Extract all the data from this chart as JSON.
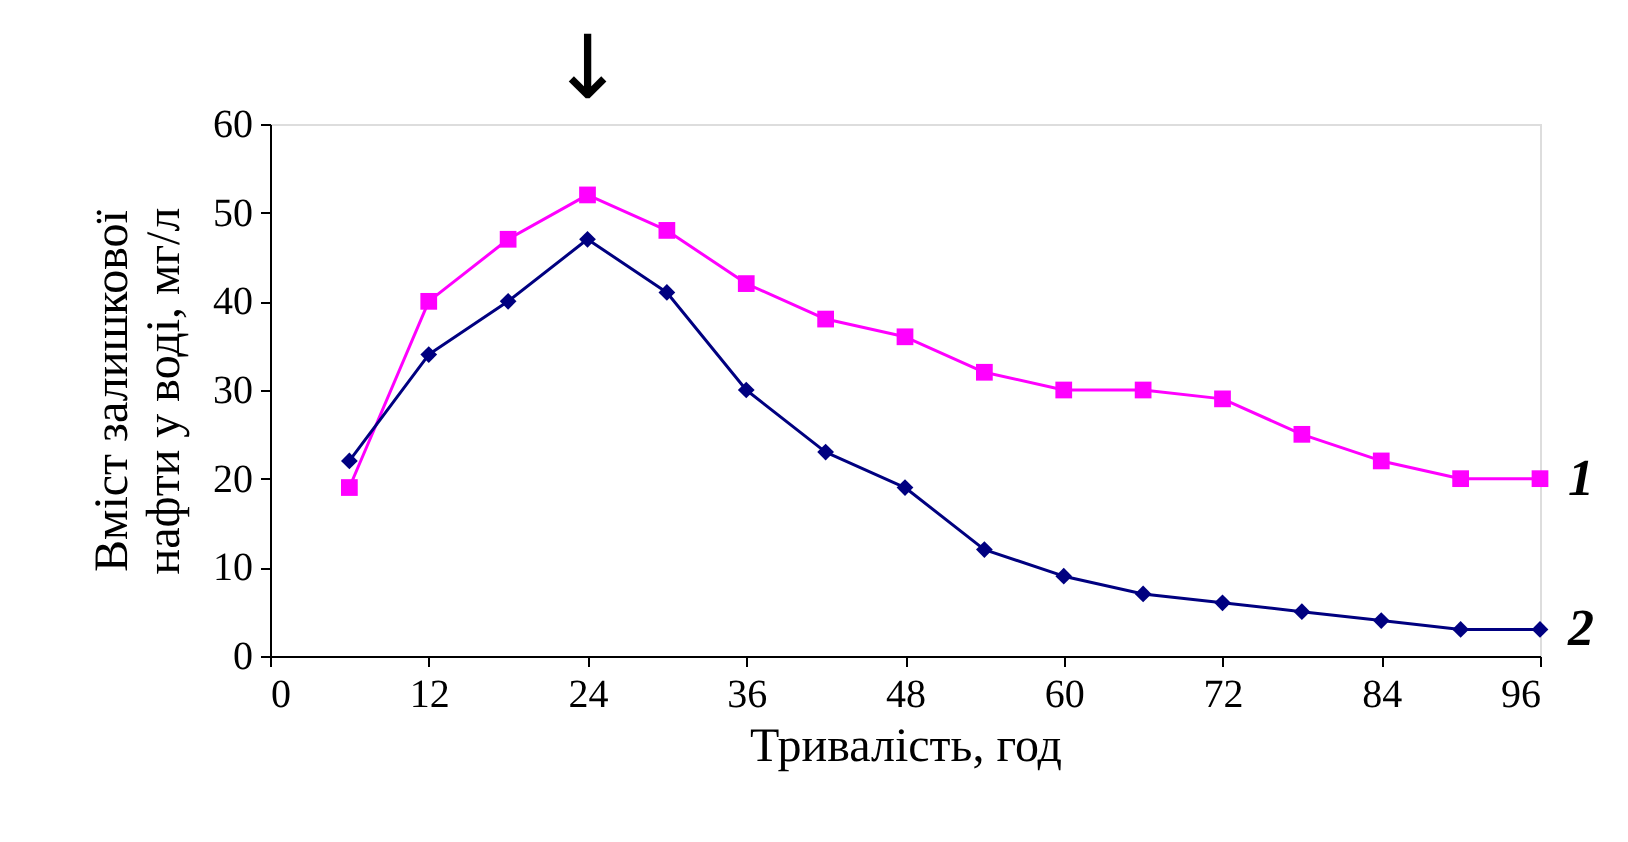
{
  "chart_data": {
    "type": "line",
    "xlabel": "Тривалість, год",
    "ylabel": "Вміст залишкової\nнафти у воді, мг/л",
    "x": [
      6,
      12,
      18,
      24,
      30,
      36,
      42,
      48,
      54,
      60,
      66,
      72,
      78,
      84,
      90,
      96
    ],
    "series": [
      {
        "name": "1",
        "color": "#ff00ff",
        "marker": "square",
        "values": [
          19,
          40,
          47,
          52,
          48,
          42,
          38,
          36,
          32,
          30,
          30,
          29,
          25,
          22,
          20,
          20
        ]
      },
      {
        "name": "2",
        "color": "#000080",
        "marker": "diamond",
        "values": [
          22,
          34,
          40,
          47,
          41,
          30,
          23,
          19,
          12,
          9,
          7,
          6,
          5,
          4,
          3,
          3
        ]
      }
    ],
    "xlim": [
      0,
      96
    ],
    "xticks": [
      0,
      12,
      24,
      36,
      48,
      60,
      72,
      84,
      96
    ],
    "ylim": [
      0,
      60
    ],
    "yticks": [
      0,
      10,
      20,
      30,
      40,
      50,
      60
    ],
    "annotations": [
      "↓"
    ],
    "grid": false,
    "line_style": "solid"
  }
}
